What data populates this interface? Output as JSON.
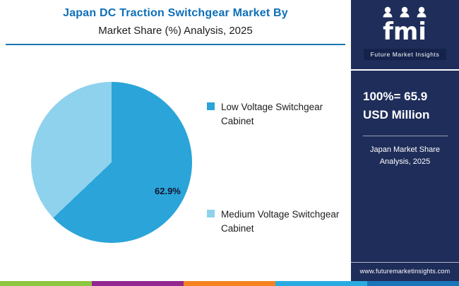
{
  "header": {
    "title_line1": "Japan DC Traction Switchgear Market By",
    "title_line2": "Market Share (%) Analysis, 2025"
  },
  "chart_data": {
    "type": "pie",
    "title": "Japan DC Traction Switchgear Market By Market Share (%) Analysis, 2025",
    "slices": [
      {
        "label": "Low Voltage Switchgear Cabinet",
        "value": 62.9,
        "color": "#2aa4d9"
      },
      {
        "label": "Medium Voltage Switchgear Cabinet",
        "value": 37.1,
        "color": "#8fd2ed"
      }
    ],
    "data_labels": [
      "62.9%"
    ],
    "legend_position": "right",
    "total_note": "100%= 65.9 USD Million"
  },
  "pie_label": "62.9%",
  "legend": {
    "items": [
      {
        "line1": "Low Voltage Switchgear",
        "line2": "Cabinet"
      },
      {
        "line1": "Medium Voltage Switchgear",
        "line2": "Cabinet"
      }
    ]
  },
  "sidebar": {
    "logo_text": "fmi",
    "logo_tagline": "Future Market Insights",
    "stat_line1": "100%= 65.9",
    "stat_line2": "USD Million",
    "caption_line1": "Japan Market Share",
    "caption_line2": "Analysis, 2025",
    "website": "www.futuremarketinsights.com"
  },
  "footer_stripe_colors": [
    "#8dc63f",
    "#92278f",
    "#f58220",
    "#29abe2",
    "#1b75bb"
  ]
}
